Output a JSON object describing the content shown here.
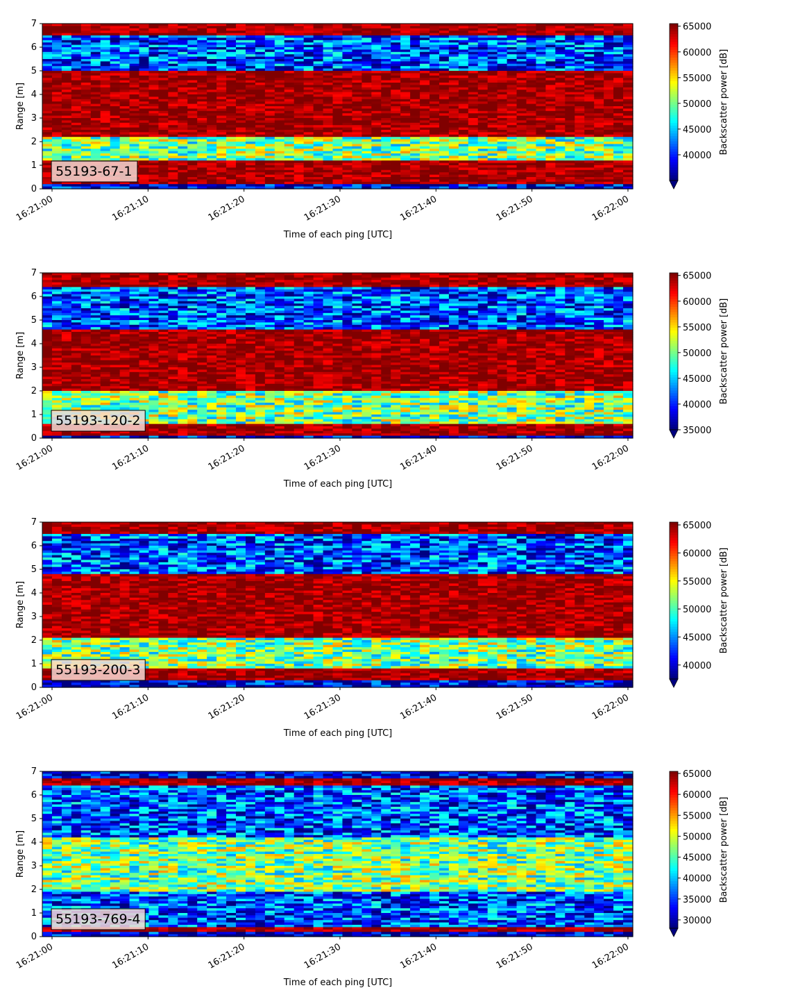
{
  "chart_data": [
    {
      "type": "heatmap",
      "sample_label": "55193-67-1",
      "xlabel": "Time of each ping [UTC]",
      "ylabel": "Range [m]",
      "x_ticks": [
        "16:21:00",
        "16:21:10",
        "16:21:20",
        "16:21:30",
        "16:21:40",
        "16:21:50",
        "16:22:00"
      ],
      "ylim": [
        0,
        7
      ],
      "y_ticks": [
        "0",
        "1",
        "2",
        "3",
        "4",
        "5",
        "6",
        "7"
      ],
      "colorbar": {
        "label": "Backscatter power [dB]",
        "range": [
          35000,
          65500
        ],
        "ticks": [
          "40000",
          "45000",
          "50000",
          "55000",
          "60000",
          "65000"
        ],
        "extend": "min"
      },
      "bands": [
        {
          "range_m": [
            6.5,
            7.0
          ],
          "level": "high"
        },
        {
          "range_m": [
            5.0,
            6.5
          ],
          "level": "low"
        },
        {
          "range_m": [
            2.2,
            5.0
          ],
          "level": "high"
        },
        {
          "range_m": [
            1.2,
            2.2
          ],
          "level": "medium"
        },
        {
          "range_m": [
            0.2,
            1.2
          ],
          "level": "high"
        }
      ]
    },
    {
      "type": "heatmap",
      "sample_label": "55193-120-2",
      "xlabel": "Time of each ping [UTC]",
      "ylabel": "Range [m]",
      "x_ticks": [
        "16:21:00",
        "16:21:10",
        "16:21:20",
        "16:21:30",
        "16:21:40",
        "16:21:50",
        "16:22:00"
      ],
      "ylim": [
        0,
        7
      ],
      "y_ticks": [
        "0",
        "1",
        "2",
        "3",
        "4",
        "5",
        "6",
        "7"
      ],
      "colorbar": {
        "label": "Backscatter power [dB]",
        "range": [
          35000,
          65500
        ],
        "ticks": [
          "35000",
          "40000",
          "45000",
          "50000",
          "55000",
          "60000",
          "65000"
        ],
        "extend": "min"
      },
      "bands": [
        {
          "range_m": [
            6.4,
            7.0
          ],
          "level": "high"
        },
        {
          "range_m": [
            4.6,
            6.4
          ],
          "level": "low"
        },
        {
          "range_m": [
            2.0,
            4.6
          ],
          "level": "high"
        },
        {
          "range_m": [
            0.6,
            2.0
          ],
          "level": "medium"
        },
        {
          "range_m": [
            0.1,
            0.6
          ],
          "level": "high"
        }
      ]
    },
    {
      "type": "heatmap",
      "sample_label": "55193-200-3",
      "xlabel": "Time of each ping [UTC]",
      "ylabel": "Range [m]",
      "x_ticks": [
        "16:21:00",
        "16:21:10",
        "16:21:20",
        "16:21:30",
        "16:21:40",
        "16:21:50",
        "16:22:00"
      ],
      "ylim": [
        0,
        7
      ],
      "y_ticks": [
        "0",
        "1",
        "2",
        "3",
        "4",
        "5",
        "6",
        "7"
      ],
      "colorbar": {
        "label": "Backscatter power [dB]",
        "range": [
          37500,
          65500
        ],
        "ticks": [
          "40000",
          "45000",
          "50000",
          "55000",
          "60000",
          "65000"
        ],
        "extend": "min"
      },
      "bands": [
        {
          "range_m": [
            6.5,
            7.0
          ],
          "level": "high"
        },
        {
          "range_m": [
            4.8,
            6.5
          ],
          "level": "low"
        },
        {
          "range_m": [
            2.1,
            4.8
          ],
          "level": "high"
        },
        {
          "range_m": [
            0.8,
            2.1
          ],
          "level": "medium"
        },
        {
          "range_m": [
            0.3,
            0.8
          ],
          "level": "high"
        }
      ]
    },
    {
      "type": "heatmap",
      "sample_label": "55193-769-4",
      "xlabel": "Time of each ping [UTC]",
      "ylabel": "Range [m]",
      "x_ticks": [
        "16:21:00",
        "16:21:10",
        "16:21:20",
        "16:21:30",
        "16:21:40",
        "16:21:50",
        "16:22:00"
      ],
      "ylim": [
        0,
        7
      ],
      "y_ticks": [
        "0",
        "1",
        "2",
        "3",
        "4",
        "5",
        "6",
        "7"
      ],
      "colorbar": {
        "label": "Backscatter power [dB]",
        "range": [
          28000,
          65500
        ],
        "ticks": [
          "30000",
          "35000",
          "40000",
          "45000",
          "50000",
          "55000",
          "60000",
          "65000"
        ],
        "extend": "min"
      },
      "bands": [
        {
          "range_m": [
            6.4,
            6.7
          ],
          "level": "high"
        },
        {
          "range_m": [
            4.2,
            6.4
          ],
          "level": "low"
        },
        {
          "range_m": [
            1.9,
            4.2
          ],
          "level": "medium"
        },
        {
          "range_m": [
            0.4,
            1.9
          ],
          "level": "low"
        },
        {
          "range_m": [
            0.2,
            0.4
          ],
          "level": "high"
        }
      ]
    }
  ],
  "colormap": "jet",
  "colors": {
    "label_box_fill": "#f4d9d4",
    "axis_color": "#000000"
  }
}
